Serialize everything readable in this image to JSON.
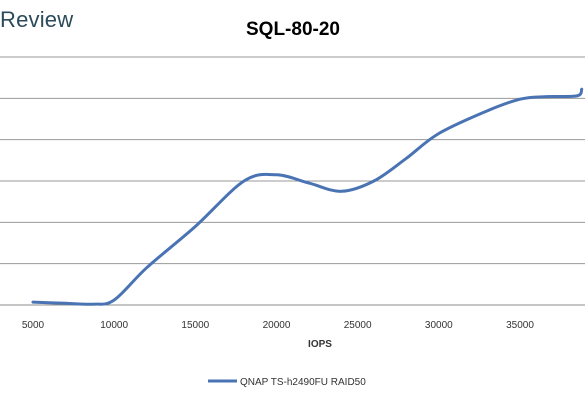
{
  "brand": {
    "text": "Review"
  },
  "chart_data": {
    "type": "line",
    "title": "SQL-80-20",
    "xlabel": "IOPS",
    "ylabel": "",
    "x_ticks": [
      5000,
      10000,
      15000,
      20000,
      25000,
      30000,
      35000
    ],
    "x_tick_labels": [
      "5000",
      "10000",
      "15000",
      "20000",
      "25000",
      "30000",
      "35000"
    ],
    "xlim": [
      4600,
      38800
    ],
    "ylim": [
      0,
      6
    ],
    "grid": true,
    "legend_position": "bottom-center",
    "series": [
      {
        "name": "QNAP TS-h2490FU RAID50",
        "color": "#4a73b4",
        "x": [
          5000,
          7000,
          8700,
          10000,
          12000,
          15000,
          18000,
          20000,
          22000,
          24000,
          26000,
          28000,
          30000,
          33000,
          35000,
          36500,
          38500,
          38800
        ],
        "y": [
          0.07,
          0.04,
          0.02,
          0.12,
          0.9,
          1.9,
          3.0,
          3.15,
          2.95,
          2.75,
          3.0,
          3.55,
          4.15,
          4.7,
          4.98,
          5.04,
          5.06,
          5.22
        ]
      }
    ]
  }
}
